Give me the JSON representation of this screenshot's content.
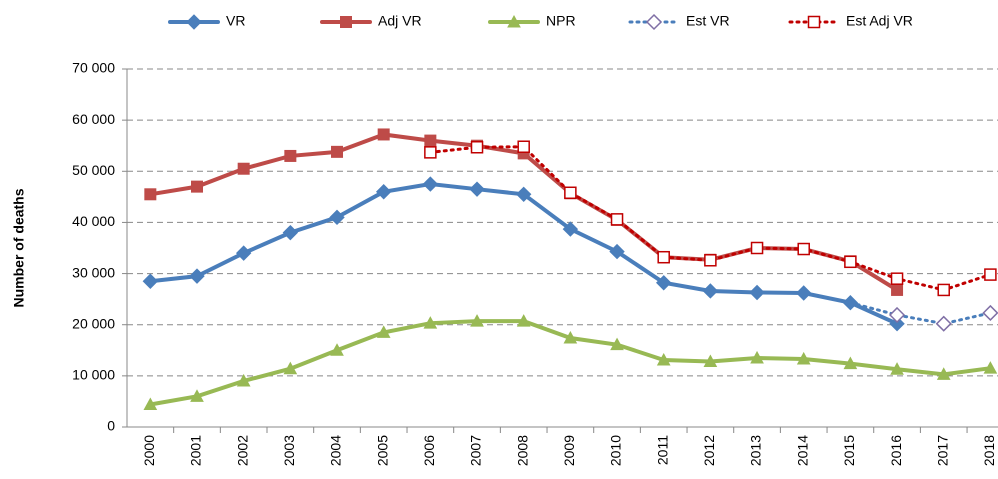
{
  "chart_data": {
    "type": "line",
    "y_label": "Number of deaths",
    "categories": [
      "2000",
      "2001",
      "2002",
      "2003",
      "2004",
      "2005",
      "2006",
      "2007",
      "2008",
      "2009",
      "2010",
      "2011",
      "2012",
      "2013",
      "2014",
      "2015",
      "2016",
      "2017",
      "2018"
    ],
    "ylim": [
      0,
      70000
    ],
    "yticks": [
      {
        "value": 0,
        "label": "0"
      },
      {
        "value": 10000,
        "label": "10 000"
      },
      {
        "value": 20000,
        "label": "20 000"
      },
      {
        "value": 30000,
        "label": "30 000"
      },
      {
        "value": 40000,
        "label": "40 000"
      },
      {
        "value": 50000,
        "label": "50 000"
      },
      {
        "value": 60000,
        "label": "60 000"
      },
      {
        "value": 70000,
        "label": "70 000"
      }
    ],
    "grid": true,
    "legend": "top",
    "series": [
      {
        "name": "VR",
        "color": "#4a7ebb",
        "marker": "diamond",
        "dotted": false,
        "values": [
          28500,
          29500,
          34000,
          38000,
          41000,
          46000,
          47500,
          46500,
          45500,
          38700,
          34300,
          28200,
          26600,
          26300,
          26200,
          24300,
          20200,
          null,
          null
        ]
      },
      {
        "name": "Adj VR",
        "color": "#be4b48",
        "marker": "square",
        "dotted": false,
        "values": [
          45500,
          47000,
          50500,
          53000,
          53800,
          57200,
          56000,
          55000,
          53500,
          45700,
          40500,
          33200,
          32700,
          35000,
          34800,
          32400,
          26800,
          null,
          null
        ]
      },
      {
        "name": "NPR",
        "color": "#98b954",
        "marker": "triangle",
        "dotted": false,
        "values": [
          4400,
          6000,
          9000,
          11400,
          15000,
          18500,
          20300,
          20700,
          20700,
          17400,
          16100,
          13100,
          12800,
          13500,
          13300,
          12400,
          11300,
          10300,
          11500
        ]
      },
      {
        "name": "Est VR",
        "color": "#4a7ebb",
        "marker": "open-diamond",
        "dotted": true,
        "values": [
          null,
          null,
          null,
          null,
          null,
          null,
          null,
          null,
          null,
          null,
          null,
          null,
          null,
          null,
          null,
          24300,
          21900,
          20200,
          22300
        ]
      },
      {
        "name": "Est Adj VR",
        "color": "#c00000",
        "marker": "open-square",
        "dotted": true,
        "values": [
          null,
          null,
          null,
          null,
          null,
          null,
          53700,
          54700,
          54800,
          45800,
          40600,
          33200,
          32600,
          35000,
          34800,
          32300,
          29000,
          26800,
          29800
        ]
      }
    ]
  }
}
